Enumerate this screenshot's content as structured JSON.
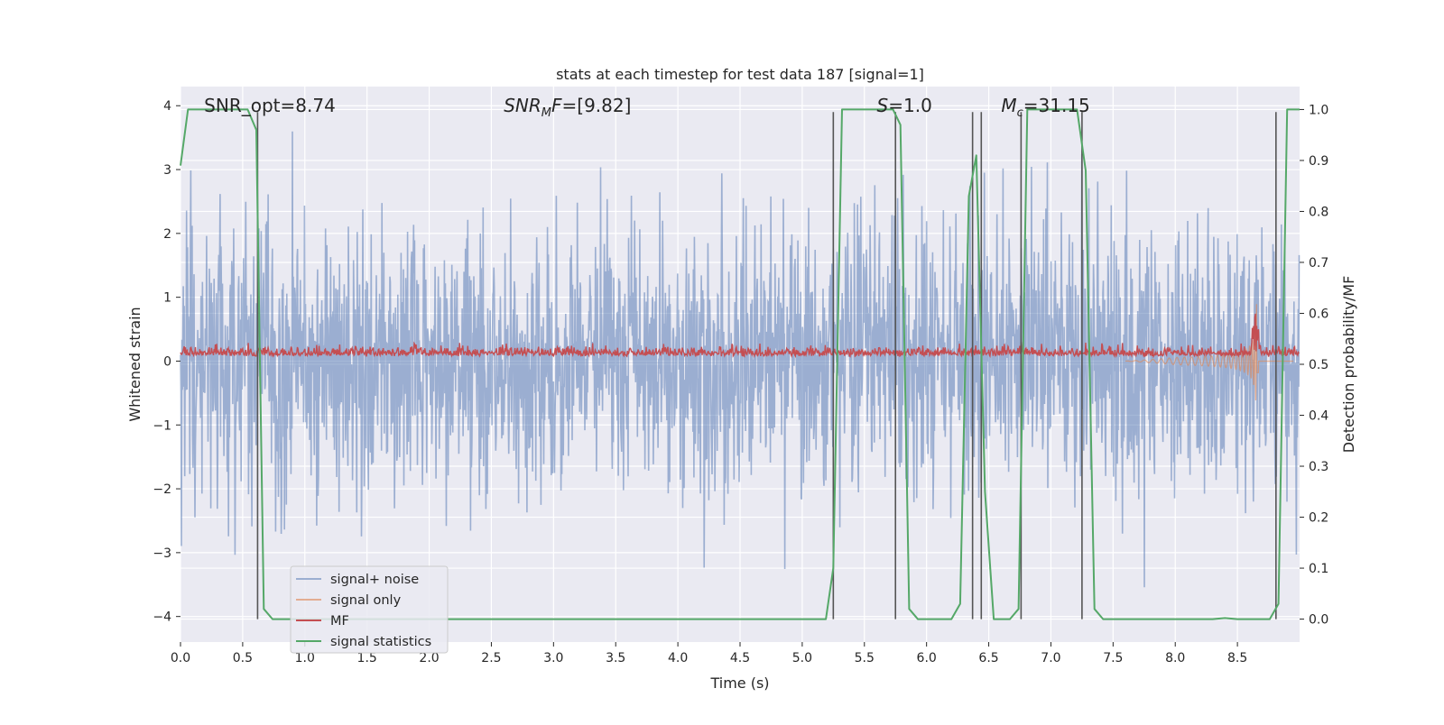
{
  "chart_data": {
    "type": "line",
    "title": "stats at each timestep for test data 187 [signal=1]",
    "xlabel": "Time (s)",
    "ylabel": "Whitened strain",
    "y2label": "Detection probability/MF",
    "xlim": [
      0.0,
      9.0
    ],
    "ylim": [
      -4.4,
      4.3
    ],
    "y2lim": [
      -0.045,
      1.045
    ],
    "x_ticks": [
      0.0,
      0.5,
      1.0,
      1.5,
      2.0,
      2.5,
      3.0,
      3.5,
      4.0,
      4.5,
      5.0,
      5.5,
      6.0,
      6.5,
      7.0,
      7.5,
      8.0,
      8.5
    ],
    "x_tick_labels": [
      "0.0",
      "0.5",
      "1.0",
      "1.5",
      "2.0",
      "2.5",
      "3.0",
      "3.5",
      "4.0",
      "4.5",
      "5.0",
      "5.5",
      "6.0",
      "6.5",
      "7.0",
      "7.5",
      "8.0",
      "8.5"
    ],
    "y_ticks": [
      4,
      3,
      2,
      1,
      0,
      -1,
      -2,
      -3,
      -4
    ],
    "y_tick_labels": [
      "4",
      "3",
      "2",
      "1",
      "0",
      "−1",
      "−2",
      "−3",
      "−4"
    ],
    "y2_ticks": [
      1.0,
      0.9,
      0.8,
      0.7,
      0.6,
      0.5,
      0.4,
      0.3,
      0.2,
      0.1,
      0.0
    ],
    "y2_tick_labels": [
      "1.0",
      "0.9",
      "0.8",
      "0.7",
      "0.6",
      "0.5",
      "0.4",
      "0.3",
      "0.2",
      "0.1",
      "0.0"
    ],
    "annotations": [
      {
        "text": "SNR_opt=8.74",
        "x": 0.19,
        "y": 4.0
      },
      {
        "html": "<tspan font-style='italic'>SNR</tspan><tspan font-style='italic' font-size='13' dy='5'>M</tspan><tspan font-style='italic' dy='-5'>F</tspan>=[9.82]",
        "x": 2.6,
        "y": 4.0
      },
      {
        "html": "<tspan font-style='italic'>S</tspan>=1.0",
        "x": 5.6,
        "y": 4.0
      },
      {
        "html": "<tspan font-style='italic'>M</tspan><tspan font-style='italic' font-size='13' dy='5'>c</tspan><tspan dy='-5'>=31.15</tspan>",
        "x": 6.6,
        "y": 4.0
      }
    ],
    "colors": {
      "plot_bg": "#eaeaf2",
      "grid": "#ffffff",
      "noise": "#4c72b0",
      "signal": "#dd8452",
      "mf": "#c44e52",
      "stats": "#55a868",
      "vline": "#555555"
    },
    "legend": {
      "placement": "lower-left",
      "entries": [
        "signal+ noise",
        "signal only",
        "MF",
        "signal statistics"
      ]
    },
    "vlines_x": [
      0.62,
      5.25,
      5.75,
      6.37,
      6.44,
      6.76,
      7.25,
      8.81
    ],
    "series": [
      {
        "name": "signal statistics",
        "axis": "right",
        "x": [
          0.0,
          0.06,
          0.13,
          0.2,
          0.27,
          0.33,
          0.4,
          0.47,
          0.54,
          0.61,
          0.67,
          0.74,
          0.81,
          0.88,
          1.0,
          2.0,
          3.0,
          4.0,
          4.5,
          5.0,
          5.19,
          5.25,
          5.32,
          5.39,
          5.46,
          5.52,
          5.59,
          5.66,
          5.73,
          5.79,
          5.86,
          5.93,
          6.0,
          6.07,
          6.13,
          6.2,
          6.27,
          6.34,
          6.4,
          6.47,
          6.54,
          6.61,
          6.67,
          6.74,
          6.81,
          6.88,
          6.94,
          7.01,
          7.08,
          7.15,
          7.21,
          7.28,
          7.35,
          7.42,
          7.49,
          7.55,
          7.62,
          7.69,
          7.76,
          8.0,
          8.2,
          8.3,
          8.4,
          8.5,
          8.6,
          8.76,
          8.83,
          8.9,
          9.0
        ],
        "y": [
          0.89,
          1.0,
          1.0,
          1.0,
          1.0,
          1.0,
          1.0,
          1.0,
          1.0,
          0.96,
          0.02,
          0.0,
          0.0,
          0.0,
          0.0,
          0.0,
          0.0,
          0.0,
          0.0,
          0.0,
          0.0,
          0.1,
          1.0,
          1.0,
          1.0,
          1.0,
          1.0,
          1.0,
          1.0,
          0.97,
          0.02,
          0.0,
          0.0,
          0.0,
          0.0,
          0.0,
          0.03,
          0.83,
          0.91,
          0.25,
          0.0,
          0.0,
          0.0,
          0.02,
          1.0,
          1.0,
          1.0,
          1.0,
          1.0,
          1.0,
          1.0,
          0.88,
          0.02,
          0.0,
          0.0,
          0.0,
          0.0,
          0.0,
          0.0,
          0.0,
          0.0,
          0.0,
          0.002,
          0.0,
          0.0,
          0.0,
          0.03,
          1.0,
          1.0
        ]
      }
    ]
  }
}
